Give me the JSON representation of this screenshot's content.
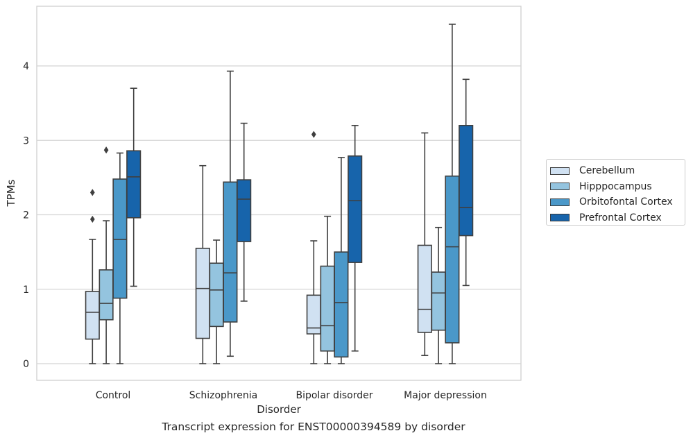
{
  "chart_data": {
    "type": "boxplot",
    "title": "Transcript expression for ENST00000394589 by disorder",
    "xlabel": "Disorder",
    "ylabel": "TPMs",
    "ylim": [
      -0.22,
      4.8
    ],
    "yticks": [
      0,
      1,
      2,
      3,
      4
    ],
    "grid": "horizontal",
    "legend_position": "right",
    "categories": [
      "Control",
      "Schizophrenia",
      "Bipolar disorder",
      "Major depression"
    ],
    "series": [
      {
        "name": "Cerebellum",
        "color": "#d0e1f2",
        "boxes": [
          {
            "whislo": 0.0,
            "q1": 0.33,
            "med": 0.69,
            "q3": 0.97,
            "whishi": 1.67,
            "fliers": [
              1.94,
              2.3
            ]
          },
          {
            "whislo": 0.0,
            "q1": 0.34,
            "med": 1.01,
            "q3": 1.55,
            "whishi": 2.66,
            "fliers": []
          },
          {
            "whislo": 0.0,
            "q1": 0.4,
            "med": 0.48,
            "q3": 0.92,
            "whishi": 1.65,
            "fliers": [
              3.08
            ]
          },
          {
            "whislo": 0.11,
            "q1": 0.42,
            "med": 0.73,
            "q3": 1.59,
            "whishi": 3.1,
            "fliers": []
          }
        ]
      },
      {
        "name": "Hipppocampus",
        "color": "#94c4df",
        "boxes": [
          {
            "whislo": 0.0,
            "q1": 0.59,
            "med": 0.81,
            "q3": 1.26,
            "whishi": 1.92,
            "fliers": [
              2.87
            ]
          },
          {
            "whislo": 0.0,
            "q1": 0.5,
            "med": 0.99,
            "q3": 1.35,
            "whishi": 1.66,
            "fliers": []
          },
          {
            "whislo": 0.0,
            "q1": 0.17,
            "med": 0.51,
            "q3": 1.31,
            "whishi": 1.98,
            "fliers": []
          },
          {
            "whislo": 0.0,
            "q1": 0.45,
            "med": 0.95,
            "q3": 1.23,
            "whishi": 1.83,
            "fliers": []
          }
        ]
      },
      {
        "name": "Orbitofontal Cortex",
        "color": "#4a98c9",
        "boxes": [
          {
            "whislo": 0.0,
            "q1": 0.88,
            "med": 1.67,
            "q3": 2.48,
            "whishi": 2.83,
            "fliers": []
          },
          {
            "whislo": 0.1,
            "q1": 0.56,
            "med": 1.22,
            "q3": 2.44,
            "whishi": 3.93,
            "fliers": []
          },
          {
            "whislo": 0.0,
            "q1": 0.09,
            "med": 0.82,
            "q3": 1.5,
            "whishi": 2.77,
            "fliers": []
          },
          {
            "whislo": 0.0,
            "q1": 0.28,
            "med": 1.57,
            "q3": 2.52,
            "whishi": 4.56,
            "fliers": []
          }
        ]
      },
      {
        "name": "Prefrontal Cortex",
        "color": "#1764ab",
        "boxes": [
          {
            "whislo": 1.04,
            "q1": 1.96,
            "med": 2.51,
            "q3": 2.86,
            "whishi": 3.7,
            "fliers": []
          },
          {
            "whislo": 0.84,
            "q1": 1.64,
            "med": 2.21,
            "q3": 2.47,
            "whishi": 3.23,
            "fliers": []
          },
          {
            "whislo": 0.17,
            "q1": 1.36,
            "med": 2.19,
            "q3": 2.79,
            "whishi": 3.2,
            "fliers": []
          },
          {
            "whislo": 1.05,
            "q1": 1.72,
            "med": 2.1,
            "q3": 3.2,
            "whishi": 3.82,
            "fliers": []
          }
        ]
      }
    ]
  }
}
